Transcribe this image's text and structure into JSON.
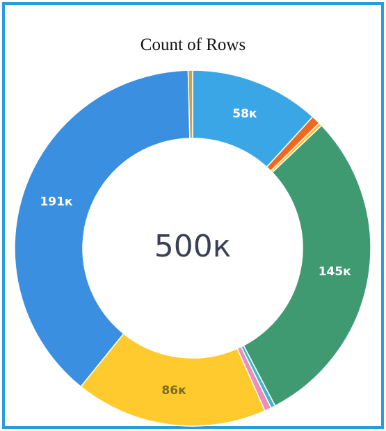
{
  "chart_data": {
    "type": "pie",
    "donut": true,
    "title": "Count of Rows",
    "center_label": "500к",
    "slices": [
      {
        "label": "58к",
        "value": 58,
        "color": "#3aa6e6",
        "label_color": "#ffffff"
      },
      {
        "label": "",
        "value": 4,
        "color": "#ef6a21",
        "label_color": "#ffffff"
      },
      {
        "label": "",
        "value": 1.5,
        "color": "#f4c534",
        "label_color": "#ffffff"
      },
      {
        "label": "145к",
        "value": 145,
        "color": "#3f9a72",
        "label_color": "#ffffff"
      },
      {
        "label": "",
        "value": 2,
        "color": "#3fb9c9",
        "label_color": "#ffffff"
      },
      {
        "label": "",
        "value": 3,
        "color": "#ea8fb8",
        "label_color": "#ffffff"
      },
      {
        "label": "86к",
        "value": 86,
        "color": "#ffca2e",
        "label_color": "#7a6a22"
      },
      {
        "label": "191к",
        "value": 191,
        "color": "#3b8fe0",
        "label_color": "#ffffff"
      },
      {
        "label": "",
        "value": 2,
        "color": "#c9a24a",
        "label_color": "#ffffff"
      }
    ]
  }
}
